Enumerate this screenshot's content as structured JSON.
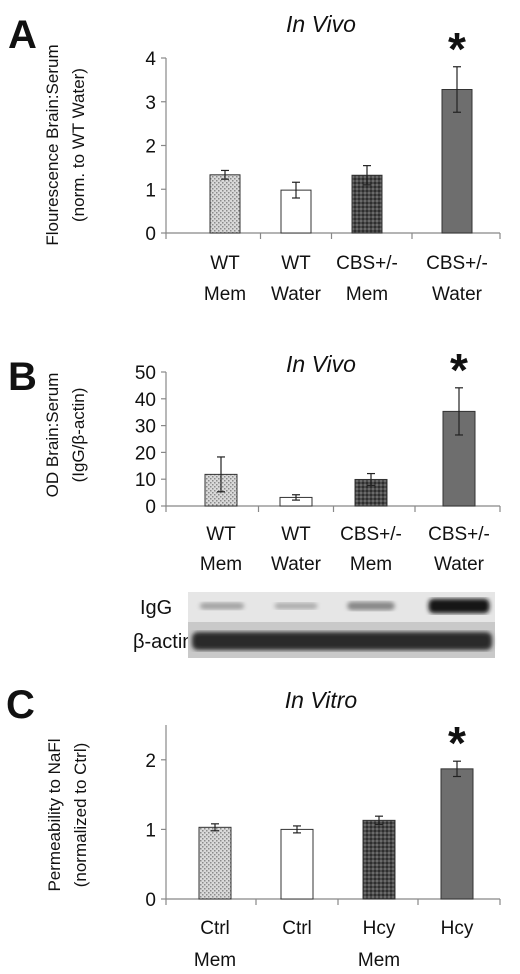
{
  "chart_data": [
    {
      "type": "bar",
      "panel": "A",
      "title": "In Vivo",
      "ylabel": [
        "Flourescence Brain:Serum",
        "(norm. to WT Water)"
      ],
      "categories": [
        [
          "WT",
          "Mem"
        ],
        [
          "WT",
          "Water"
        ],
        [
          "CBS+/-",
          "Mem"
        ],
        [
          "CBS+/-",
          "Water"
        ]
      ],
      "values": [
        1.33,
        0.98,
        1.32,
        3.28
      ],
      "errors": [
        0.1,
        0.18,
        0.22,
        0.52
      ],
      "fills": [
        "dotted",
        "white",
        "dark-pattern",
        "gray"
      ],
      "ylim": [
        0,
        4
      ],
      "yticks": [
        "0",
        "1",
        "2",
        "3",
        "4"
      ],
      "significance": [
        {
          "index": 3,
          "text": "*"
        }
      ]
    },
    {
      "type": "bar",
      "panel": "B",
      "title": "In Vivo",
      "ylabel": [
        "OD Brain:Serum",
        "(IgG/β-actin)"
      ],
      "categories": [
        [
          "WT",
          "Mem"
        ],
        [
          "WT",
          "Water"
        ],
        [
          "CBS+/-",
          "Mem"
        ],
        [
          "CBS+/-",
          "Water"
        ]
      ],
      "values": [
        11.8,
        3.2,
        9.9,
        35.3
      ],
      "errors": [
        6.5,
        1.0,
        2.2,
        8.8
      ],
      "fills": [
        "dotted",
        "white",
        "dark-pattern",
        "gray"
      ],
      "ylim": [
        0,
        50
      ],
      "yticks": [
        "0",
        "10",
        "20",
        "30",
        "40",
        "50"
      ],
      "significance": [
        {
          "index": 3,
          "text": "*"
        }
      ],
      "blot": {
        "rows": [
          "IgG",
          "β-actin"
        ],
        "igg_intensity": [
          0.2,
          0.15,
          0.35,
          0.95
        ]
      }
    },
    {
      "type": "bar",
      "panel": "C",
      "title": "In Vitro",
      "ylabel": [
        "Permeability to NaFl",
        "(normalized to Ctrl)"
      ],
      "categories": [
        [
          "Ctrl",
          "Mem"
        ],
        [
          "Ctrl",
          ""
        ],
        [
          "Hcy",
          "Mem"
        ],
        [
          "Hcy",
          ""
        ]
      ],
      "values": [
        1.03,
        1.0,
        1.13,
        1.87
      ],
      "errors": [
        0.05,
        0.05,
        0.06,
        0.11
      ],
      "fills": [
        "dotted",
        "white",
        "dark-pattern",
        "gray"
      ],
      "ylim": [
        0,
        2.5
      ],
      "yticks": [
        "0",
        "1",
        "2"
      ],
      "ytick_values": [
        0,
        1,
        2
      ],
      "significance": [
        {
          "index": 3,
          "text": "*"
        }
      ]
    }
  ]
}
